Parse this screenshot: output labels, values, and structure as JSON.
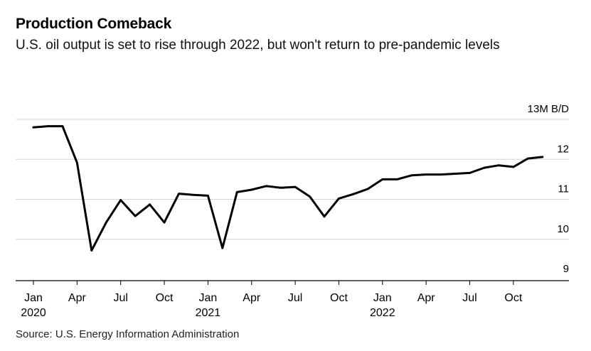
{
  "header": {
    "title": "Production Comeback",
    "subtitle": "U.S. oil output is set to rise through 2022, but won't return to pre-pandemic levels"
  },
  "footer": {
    "source": "Source: U.S. Energy Information Administration"
  },
  "chart_data": {
    "type": "line",
    "title": "Production Comeback",
    "unit_label": "13M B/D",
    "ylim": [
      9,
      13
    ],
    "y_ticks": [
      {
        "value": 13,
        "label": "13M B/D"
      },
      {
        "value": 12,
        "label": "12"
      },
      {
        "value": 11,
        "label": "11"
      },
      {
        "value": 10,
        "label": "10"
      },
      {
        "value": 9,
        "label": "9"
      }
    ],
    "x_ticks": [
      {
        "date": "2020-01",
        "label": "Jan",
        "year": "2020"
      },
      {
        "date": "2020-04",
        "label": "Apr"
      },
      {
        "date": "2020-07",
        "label": "Jul"
      },
      {
        "date": "2020-10",
        "label": "Oct"
      },
      {
        "date": "2021-01",
        "label": "Jan",
        "year": "2021"
      },
      {
        "date": "2021-04",
        "label": "Apr"
      },
      {
        "date": "2021-07",
        "label": "Jul"
      },
      {
        "date": "2021-10",
        "label": "Oct"
      },
      {
        "date": "2022-01",
        "label": "Jan",
        "year": "2022"
      },
      {
        "date": "2022-04",
        "label": "Apr"
      },
      {
        "date": "2022-07",
        "label": "Jul"
      },
      {
        "date": "2022-10",
        "label": "Oct"
      }
    ],
    "grid": true,
    "legend": "none",
    "color": "#000000",
    "series": [
      {
        "x": [
          "2020-01",
          "2020-02",
          "2020-03",
          "2020-04",
          "2020-05",
          "2020-06",
          "2020-07",
          "2020-08",
          "2020-09",
          "2020-10",
          "2020-11",
          "2020-12",
          "2021-01",
          "2021-02",
          "2021-03",
          "2021-04",
          "2021-05",
          "2021-06",
          "2021-07",
          "2021-08",
          "2021-09",
          "2021-10",
          "2021-11",
          "2021-12",
          "2022-01",
          "2022-02",
          "2022-03",
          "2022-04",
          "2022-05",
          "2022-06",
          "2022-07",
          "2022-08",
          "2022-09",
          "2022-10",
          "2022-11",
          "2022-12"
        ],
        "values": [
          12.8,
          12.83,
          12.83,
          11.92,
          9.72,
          10.42,
          10.98,
          10.58,
          10.87,
          10.42,
          11.14,
          11.11,
          11.09,
          9.78,
          11.18,
          11.24,
          11.33,
          11.29,
          11.31,
          11.07,
          10.57,
          11.02,
          11.13,
          11.26,
          11.5,
          11.5,
          11.6,
          11.62,
          11.62,
          11.64,
          11.66,
          11.79,
          11.85,
          11.81,
          12.02,
          12.06
        ]
      }
    ]
  }
}
